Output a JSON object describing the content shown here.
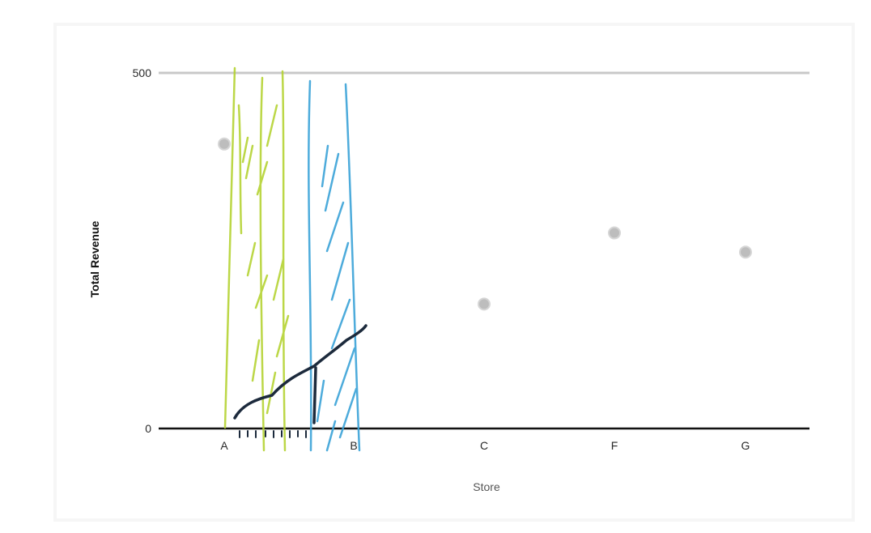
{
  "chart_data": {
    "type": "scatter",
    "xlabel": "Store",
    "ylabel": "Total Revenue",
    "categories": [
      "A",
      "B",
      "C",
      "F",
      "G"
    ],
    "y_ticks": [
      "0",
      "500"
    ],
    "ylim": [
      0,
      500
    ],
    "series": [
      {
        "values": [
          400,
          null,
          175,
          275,
          248
        ]
      }
    ],
    "grid": false,
    "legend": "none",
    "colors": {
      "point": "#bdbdbd",
      "axis": "#111111",
      "top_line": "#c8c8c8",
      "sketch_green": "#b5d334",
      "sketch_blue": "#3aa3d8",
      "sketch_dark": "#1c2a3c",
      "frame": "#f4f4f4"
    }
  }
}
